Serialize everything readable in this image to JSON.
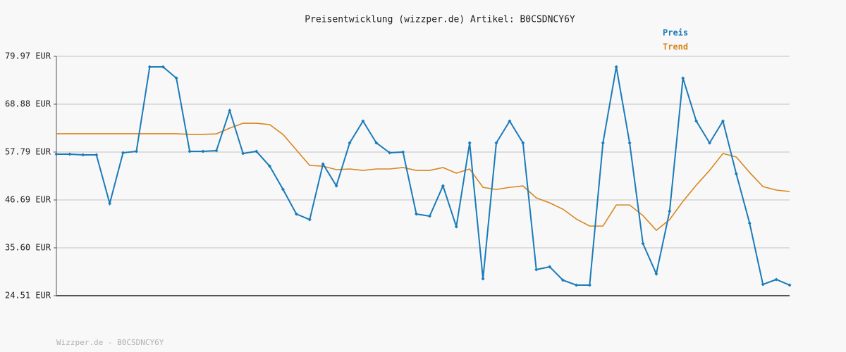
{
  "chart_data": {
    "type": "line",
    "title": "Preisentwicklung (wizzper.de) Artikel: B0CSDNCY6Y",
    "footer": "Wizzper.de - B0CSDNCY6Y",
    "categories": [
      null,
      null,
      null,
      null,
      null,
      null,
      null,
      null,
      null,
      null,
      null,
      null,
      null,
      null,
      null,
      null,
      null,
      null,
      null,
      null,
      null,
      null,
      null,
      null,
      null,
      null,
      null,
      null,
      null,
      null,
      null,
      null,
      null,
      null,
      null,
      null,
      null,
      null,
      null,
      null,
      null,
      null,
      null,
      null,
      null,
      null,
      null,
      null,
      null,
      null,
      null,
      null,
      null,
      null,
      null,
      null
    ],
    "series": [
      {
        "name": "Preis",
        "color": "#1a7bb9",
        "markers": true,
        "values": [
          57.3,
          57.3,
          57.13,
          57.13,
          45.88,
          57.62,
          57.95,
          77.52,
          77.52,
          74.91,
          57.95,
          57.95,
          58.11,
          67.41,
          57.46,
          57.95,
          54.52,
          49.14,
          43.43,
          42.13,
          55.01,
          49.96,
          59.91,
          64.96,
          59.91,
          57.62,
          57.79,
          43.43,
          42.94,
          49.96,
          40.5,
          59.91,
          28.42,
          59.91,
          64.96,
          59.91,
          30.55,
          31.2,
          28.1,
          26.96,
          26.96,
          59.91,
          77.52,
          59.91,
          36.58,
          29.57,
          44.08,
          74.91,
          64.96,
          59.91,
          64.96,
          52.73,
          41.31,
          27.12,
          28.26,
          26.96
        ]
      },
      {
        "name": "Trend",
        "color": "#d8861f",
        "markers": false,
        "values": [
          62.03,
          62.03,
          62.03,
          62.03,
          62.03,
          62.03,
          62.03,
          62.03,
          62.03,
          62.03,
          61.9,
          61.9,
          62.0,
          63.33,
          64.47,
          64.47,
          64.15,
          61.86,
          58.28,
          54.69,
          54.52,
          53.71,
          53.87,
          53.54,
          53.87,
          53.87,
          54.2,
          53.54,
          53.54,
          54.2,
          52.89,
          53.87,
          49.61,
          49.12,
          49.61,
          49.94,
          47.16,
          46.02,
          44.55,
          42.27,
          40.64,
          40.64,
          45.53,
          45.53,
          43.08,
          39.66,
          42.13,
          46.37,
          50.12,
          53.54,
          57.46,
          56.64,
          53.05,
          49.79,
          48.98,
          48.65
        ]
      }
    ],
    "ylim": [
      24.51,
      79.97
    ],
    "yticks": [
      {
        "value": 24.51,
        "label": "24.51 EUR"
      },
      {
        "value": 35.6,
        "label": "35.60 EUR"
      },
      {
        "value": 46.69,
        "label": "46.69 EUR"
      },
      {
        "value": 57.79,
        "label": "57.79 EUR"
      },
      {
        "value": 68.88,
        "label": "68.88 EUR"
      },
      {
        "value": 79.97,
        "label": "79.97 EUR"
      }
    ],
    "grid": true
  }
}
